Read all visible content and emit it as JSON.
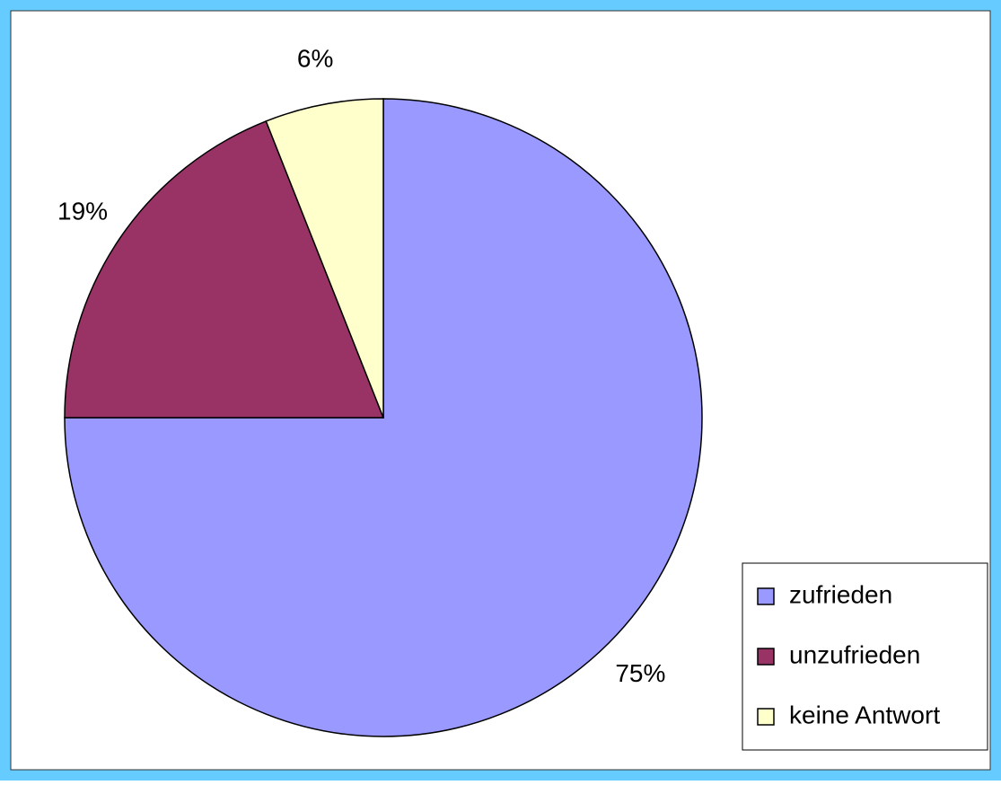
{
  "chart_data": {
    "type": "pie",
    "categories": [
      "zufrieden",
      "unzufrieden",
      "keine Antwort"
    ],
    "values": [
      75,
      19,
      6
    ],
    "value_labels": [
      "75%",
      "19%",
      "6%"
    ],
    "colors": [
      "#9999ff",
      "#993366",
      "#ffffcc"
    ],
    "legend": "bottom-right"
  }
}
